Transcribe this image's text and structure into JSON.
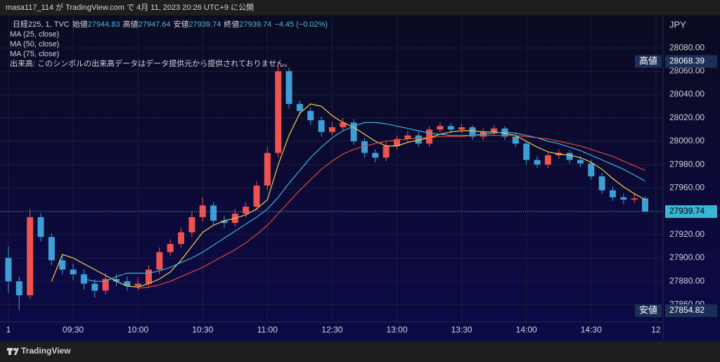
{
  "header": {
    "text": "masa117_114 が TradingView.com で 4月 11, 2023 20:26 UTC+9 に公開"
  },
  "footer": {
    "brand": "TradingView"
  },
  "chart_data": {
    "type": "candlestick",
    "legend": {
      "symbol": "日経225, 1, TVC",
      "open_label": "始値",
      "open": 27944.83,
      "high_label": "高値",
      "high": 27947.64,
      "low_label": "安値",
      "low": 27939.74,
      "close_label": "終値",
      "close": 27939.74,
      "change": "−4.45 (−0.02%)",
      "color": "#4fb7d8"
    },
    "volume_note": "出来高: このシンボルの出来高データはデータ提供元から提供されておりません。",
    "currency": "JPY",
    "up_color": "#ef5350",
    "down_color": "#3d9fd6",
    "candles": {
      "x": [
        0,
        5,
        10,
        15,
        20,
        25,
        30,
        35,
        40,
        45,
        50,
        55,
        60,
        65,
        70,
        75,
        80,
        85,
        90,
        95,
        100,
        105,
        110,
        115,
        120,
        125,
        130,
        135,
        140,
        145,
        150,
        155,
        160,
        165,
        170,
        175,
        180,
        185,
        190,
        195,
        200,
        205,
        210,
        215,
        220,
        225,
        230,
        235,
        240,
        245,
        250,
        255,
        260,
        265,
        270,
        275,
        280,
        285,
        290,
        295
      ],
      "open": [
        27900,
        27880,
        27868,
        27935,
        27918,
        27898,
        27890,
        27886,
        27878,
        27872,
        27882,
        27880,
        27876,
        27878,
        27890,
        27905,
        27912,
        27922,
        27935,
        27945,
        27932,
        27930,
        27938,
        27944,
        27962,
        27990,
        28060,
        28032,
        28026,
        28018,
        28008,
        28012,
        28016,
        28000,
        27990,
        27986,
        27996,
        28002,
        28005,
        27998,
        28010,
        28013,
        28010,
        28012,
        28004,
        28008,
        28011,
        28004,
        27998,
        27984,
        27980,
        27988,
        27990,
        27984,
        27981,
        27970,
        27958,
        27952,
        27950,
        27951
      ],
      "high": [
        27910,
        27884,
        27942,
        27938,
        27921,
        27902,
        27895,
        27890,
        27882,
        27887,
        27886,
        27884,
        27883,
        27894,
        27909,
        27916,
        27926,
        27940,
        27952,
        27948,
        27936,
        27942,
        27948,
        27966,
        27995,
        28068.39,
        28063,
        28035,
        28029,
        28021,
        28016,
        28020,
        28019,
        28003,
        27993,
        27999,
        28005,
        28009,
        28008,
        28013,
        28016,
        28016,
        28015,
        28014,
        28011,
        28014,
        28013,
        28007,
        28000,
        27987,
        27991,
        27993,
        27992,
        27987,
        27984,
        27973,
        27961,
        27955,
        27956,
        27953
      ],
      "low": [
        27870,
        27854.82,
        27865,
        27914,
        27894,
        27886,
        27881,
        27873,
        27866,
        27869,
        27876,
        27872,
        27872,
        27875,
        27886,
        27902,
        27909,
        27918,
        27931,
        27928,
        27926,
        27927,
        27935,
        27941,
        27958,
        27986,
        28028,
        28022,
        28014,
        28004,
        28005,
        28009,
        27997,
        27986,
        27982,
        27983,
        27993,
        27999,
        27995,
        27995,
        28007,
        28007,
        28007,
        28001,
        28001,
        28005,
        28001,
        27995,
        27980,
        27977,
        27977,
        27985,
        27981,
        27978,
        27967,
        27955,
        27949,
        27946,
        27947,
        27939.74
      ],
      "close": [
        27880,
        27868,
        27935,
        27918,
        27898,
        27890,
        27886,
        27878,
        27872,
        27882,
        27880,
        27876,
        27878,
        27890,
        27905,
        27912,
        27922,
        27935,
        27945,
        27932,
        27930,
        27938,
        27944,
        27962,
        27990,
        28060,
        28032,
        28026,
        28018,
        28008,
        28012,
        28016,
        28000,
        27990,
        27986,
        27996,
        28002,
        28005,
        27998,
        28010,
        28013,
        28010,
        28012,
        28004,
        28008,
        28011,
        28004,
        27998,
        27984,
        27980,
        27988,
        27990,
        27984,
        27981,
        27970,
        27958,
        27952,
        27950,
        27951,
        27939.74
      ]
    },
    "series": [
      {
        "name": "MA (25, close)",
        "color": "#f2cf45",
        "values": [
          null,
          null,
          null,
          null,
          27880,
          27903,
          27900,
          27895,
          27890,
          27885,
          27880,
          27876,
          27875,
          27878,
          27882,
          27888,
          27898,
          27910,
          27922,
          27928,
          27932,
          27934,
          27937,
          27942,
          27950,
          27980,
          28005,
          28024,
          28032,
          28030,
          28022,
          28016,
          28012,
          28006,
          28000,
          27996,
          27996,
          27999,
          28001,
          28003,
          28006,
          28008,
          28009,
          28009,
          28008,
          28008,
          28007,
          28005,
          28000,
          27995,
          27991,
          27989,
          27988,
          27986,
          27982,
          27976,
          27968,
          27961,
          27955,
          27950
        ]
      },
      {
        "name": "MA (50, close)",
        "color": "#3fb3d9",
        "values": [
          null,
          null,
          null,
          null,
          null,
          null,
          null,
          27882,
          27880,
          27880,
          27884,
          27887,
          27887,
          27887,
          27889,
          27892,
          27896,
          27900,
          27905,
          27911,
          27917,
          27923,
          27929,
          27935,
          27942,
          27952,
          27964,
          27975,
          27986,
          27995,
          28003,
          28009,
          28013,
          28016,
          28016,
          28015,
          28013,
          28011,
          28009,
          28007,
          28006,
          28005,
          28005,
          28005,
          28006,
          28007,
          28008,
          28007,
          28005,
          28003,
          28000,
          27998,
          27995,
          27992,
          27988,
          27984,
          27980,
          27976,
          27971,
          27966
        ]
      },
      {
        "name": "MA (75, close)",
        "color": "#e0473a",
        "values": [
          null,
          null,
          null,
          null,
          null,
          null,
          null,
          null,
          null,
          null,
          null,
          null,
          27874,
          27875,
          27877,
          27880,
          27884,
          27888,
          27892,
          27897,
          27902,
          27907,
          27913,
          27920,
          27928,
          27938,
          27948,
          27958,
          27967,
          27976,
          27983,
          27989,
          27993,
          27996,
          27998,
          28000,
          28001,
          28002,
          28003,
          28003,
          28004,
          28004,
          28004,
          28005,
          28005,
          28005,
          28005,
          28005,
          28004,
          28003,
          28002,
          28000,
          27998,
          27996,
          27993,
          27990,
          27987,
          27983,
          27979,
          27975
        ]
      }
    ],
    "xlim": [
      -3.9,
      303.3
    ],
    "xticks": [
      {
        "value": 0,
        "label": "1"
      },
      {
        "value": 30,
        "label": "09:30"
      },
      {
        "value": 60,
        "label": "10:00"
      },
      {
        "value": 90,
        "label": "10:30"
      },
      {
        "value": 120,
        "label": "11:00"
      },
      {
        "value": 150,
        "label": "12:30"
      },
      {
        "value": 180,
        "label": "13:00"
      },
      {
        "value": 210,
        "label": "13:30"
      },
      {
        "value": 240,
        "label": "14:00"
      },
      {
        "value": 270,
        "label": "14:30"
      },
      {
        "value": 300,
        "label": "12"
      }
    ],
    "ylim": [
      27847,
      28106
    ],
    "yticks": [
      {
        "value": 27860,
        "label": "27860.00"
      },
      {
        "value": 27880,
        "label": "27880.00"
      },
      {
        "value": 27900,
        "label": "27900.00"
      },
      {
        "value": 27920,
        "label": "27920.00"
      },
      {
        "value": 27940,
        "label": "27940.00"
      },
      {
        "value": 27960,
        "label": "27960.00"
      },
      {
        "value": 27980,
        "label": "27980.00"
      },
      {
        "value": 28000,
        "label": "28000.00"
      },
      {
        "value": 28020,
        "label": "28020.00"
      },
      {
        "value": 28040,
        "label": "28040.00"
      },
      {
        "value": 28060,
        "label": "28060.00"
      },
      {
        "value": 28080,
        "label": "28080.00"
      }
    ],
    "grid": true,
    "high_marker": {
      "label": "高値",
      "value": 28068.39
    },
    "low_marker": {
      "label": "安値",
      "value": 27854.82
    },
    "last_price": {
      "value": 27939.74,
      "color": "#39b5d6"
    }
  }
}
